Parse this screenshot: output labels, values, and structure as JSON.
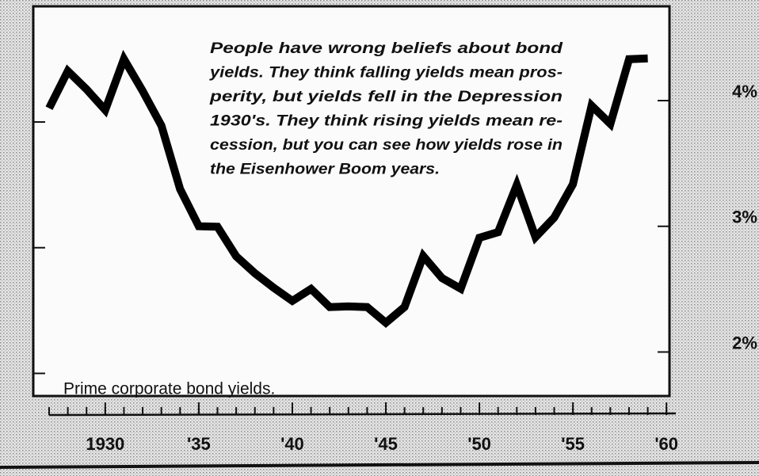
{
  "chart_data": {
    "type": "line",
    "annotation": [
      "People have wrong beliefs about bond",
      "yields.  They think falling yields mean pros-",
      "perity, but yields fell in the Depression",
      "1930's.  They think rising yields mean re-",
      "cession, but you can see how yields rose in",
      "the Eisenhower Boom years."
    ],
    "note": "Prime corporate bond yields.",
    "x": [
      1927,
      1928,
      1929,
      1930,
      1931,
      1932,
      1933,
      1934,
      1935,
      1936,
      1937,
      1938,
      1939,
      1940,
      1941,
      1942,
      1943,
      1944,
      1945,
      1946,
      1947,
      1948,
      1949,
      1950,
      1951,
      1952,
      1953,
      1954,
      1955,
      1956,
      1957,
      1958,
      1959
    ],
    "values": [
      4.11,
      4.4,
      4.25,
      4.08,
      4.48,
      4.22,
      3.94,
      3.43,
      3.13,
      3.12,
      2.88,
      2.74,
      2.62,
      2.51,
      2.6,
      2.45,
      2.45,
      2.44,
      2.31,
      2.43,
      2.83,
      2.65,
      2.56,
      2.96,
      3.0,
      3.37,
      2.95,
      3.1,
      3.36,
      3.98,
      3.83,
      4.34,
      4.34
    ],
    "color": "#000000",
    "xlim": [
      1927,
      1960.5
    ],
    "xticks": [
      1930,
      {
        "value": 1935,
        "label": "'35"
      },
      {
        "value": 1940,
        "label": "'40"
      },
      {
        "value": 1945,
        "label": "'45"
      },
      {
        "value": 1950,
        "label": "'50"
      },
      {
        "value": 1955,
        "label": "'55"
      },
      {
        "value": 1960,
        "label": "'60"
      }
    ],
    "x_minor_ticks": [
      1927,
      1928,
      1929,
      1930,
      1931,
      1932,
      1933,
      1934,
      1935,
      1936,
      1937,
      1938,
      1939,
      1940,
      1941,
      1942,
      1943,
      1944,
      1945,
      1946,
      1947,
      1948,
      1949,
      1950,
      1951,
      1952,
      1953,
      1954,
      1955,
      1956,
      1957,
      1958,
      1959,
      1960
    ],
    "ylim": [
      1.65,
      4.75
    ],
    "yticks": [
      {
        "value": 2,
        "label": "2%"
      },
      {
        "value": 3,
        "label": "3%"
      },
      {
        "value": 4,
        "label": "4%"
      }
    ]
  }
}
